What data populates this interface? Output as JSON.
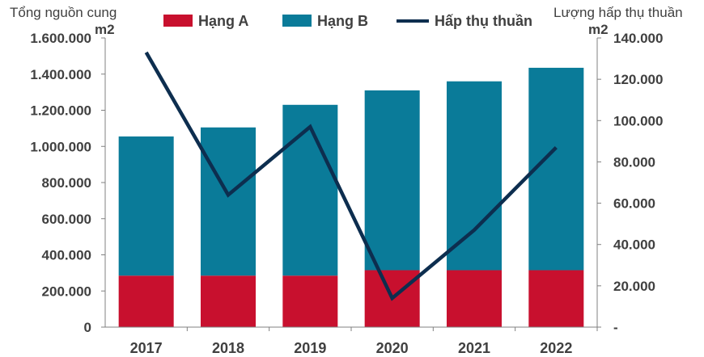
{
  "chart_data": {
    "type": "bar",
    "stacked": true,
    "categories": [
      "2017",
      "2018",
      "2019",
      "2020",
      "2021",
      "2022"
    ],
    "series": [
      {
        "name": "Hạng A",
        "type": "bar",
        "axis": "left",
        "color": "#c8102e",
        "values": [
          285000,
          285000,
          285000,
          315000,
          315000,
          315000
        ]
      },
      {
        "name": "Hạng B",
        "type": "bar",
        "axis": "left",
        "color": "#0a7b99",
        "values": [
          770000,
          820000,
          945000,
          995000,
          1045000,
          1120000
        ]
      },
      {
        "name": "Hấp thụ thuần",
        "type": "line",
        "axis": "right",
        "color": "#0d2e4f",
        "values": [
          133000,
          64000,
          97000,
          14000,
          47000,
          87000
        ]
      }
    ],
    "y_left": {
      "title": "Tổng nguồn cung",
      "unit": "m2",
      "range": [
        0,
        1600000
      ],
      "ticks": [
        "0",
        "200.000",
        "400.000",
        "600.000",
        "800.000",
        "1.000.000",
        "1.200.000",
        "1.400.000",
        "1.600.000"
      ]
    },
    "y_right": {
      "title": "Lượng hấp thụ thuần",
      "unit": "m2",
      "range": [
        0,
        140000
      ],
      "ticks": [
        "-",
        "20.000",
        "40.000",
        "60.000",
        "80.000",
        "100.000",
        "120.000",
        "140.000"
      ]
    },
    "legend_position": "top",
    "grid": false
  }
}
